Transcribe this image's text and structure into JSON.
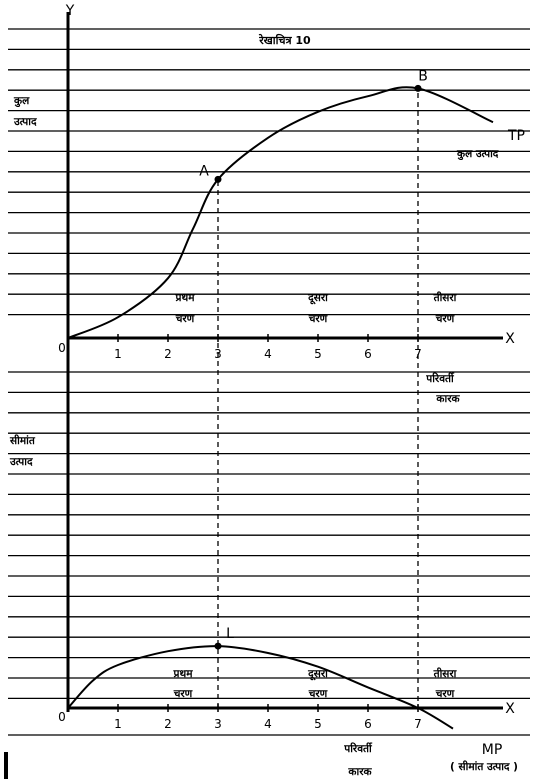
{
  "chart_data": [
    {
      "type": "line",
      "title": "रेखाचित्र 10",
      "ylabel": "कुल उत्पाद",
      "xlabel": "परिवर्ती कारक",
      "x_axis_letter": "X",
      "y_axis_letter": "Y",
      "origin_label": "0",
      "xlim": [
        0,
        8
      ],
      "x_ticks": [
        "1",
        "2",
        "3",
        "4",
        "5",
        "6",
        "7"
      ],
      "series": [
        {
          "name": "TP",
          "legend": "कुल उत्पाद",
          "x": [
            0,
            1,
            2,
            2.5,
            3,
            4,
            5,
            6,
            7,
            8.5
          ],
          "y": [
            0,
            0.8,
            2.3,
            4.2,
            6.1,
            7.7,
            8.7,
            9.3,
            9.6,
            8.3
          ]
        }
      ],
      "points": [
        {
          "label": "A",
          "x": 3,
          "y": 6.1
        },
        {
          "label": "B",
          "x": 7,
          "y": 9.6
        }
      ],
      "stages": [
        {
          "line1": "प्रथम",
          "line2": "चरण"
        },
        {
          "line1": "दूसरा",
          "line2": "चरण"
        },
        {
          "line1": "तीसरा",
          "line2": "चरण"
        }
      ]
    },
    {
      "type": "line",
      "ylabel": "सीमांत उत्पाद",
      "xlabel": "परिवर्ती कारक",
      "x_axis_letter": "X",
      "origin_label": "0",
      "xlim": [
        0,
        8
      ],
      "x_ticks": [
        "1",
        "2",
        "3",
        "4",
        "5",
        "6",
        "7"
      ],
      "series": [
        {
          "name": "MP",
          "legend": "( सीमांत उत्पाद )",
          "x": [
            0,
            0.5,
            1,
            2,
            3,
            4,
            5,
            6,
            7,
            7.7
          ],
          "y": [
            0,
            1.6,
            2.5,
            3.3,
            3.6,
            3.2,
            2.4,
            1.2,
            0,
            -1.2
          ]
        }
      ],
      "points": [
        {
          "label": "L",
          "x": 3,
          "y": 3.6
        }
      ],
      "stages": [
        {
          "line1": "प्रथम",
          "line2": "चरण"
        },
        {
          "line1": "दूसरा",
          "line2": "चरण"
        },
        {
          "line1": "तीसरा",
          "line2": "चरण"
        }
      ]
    }
  ]
}
